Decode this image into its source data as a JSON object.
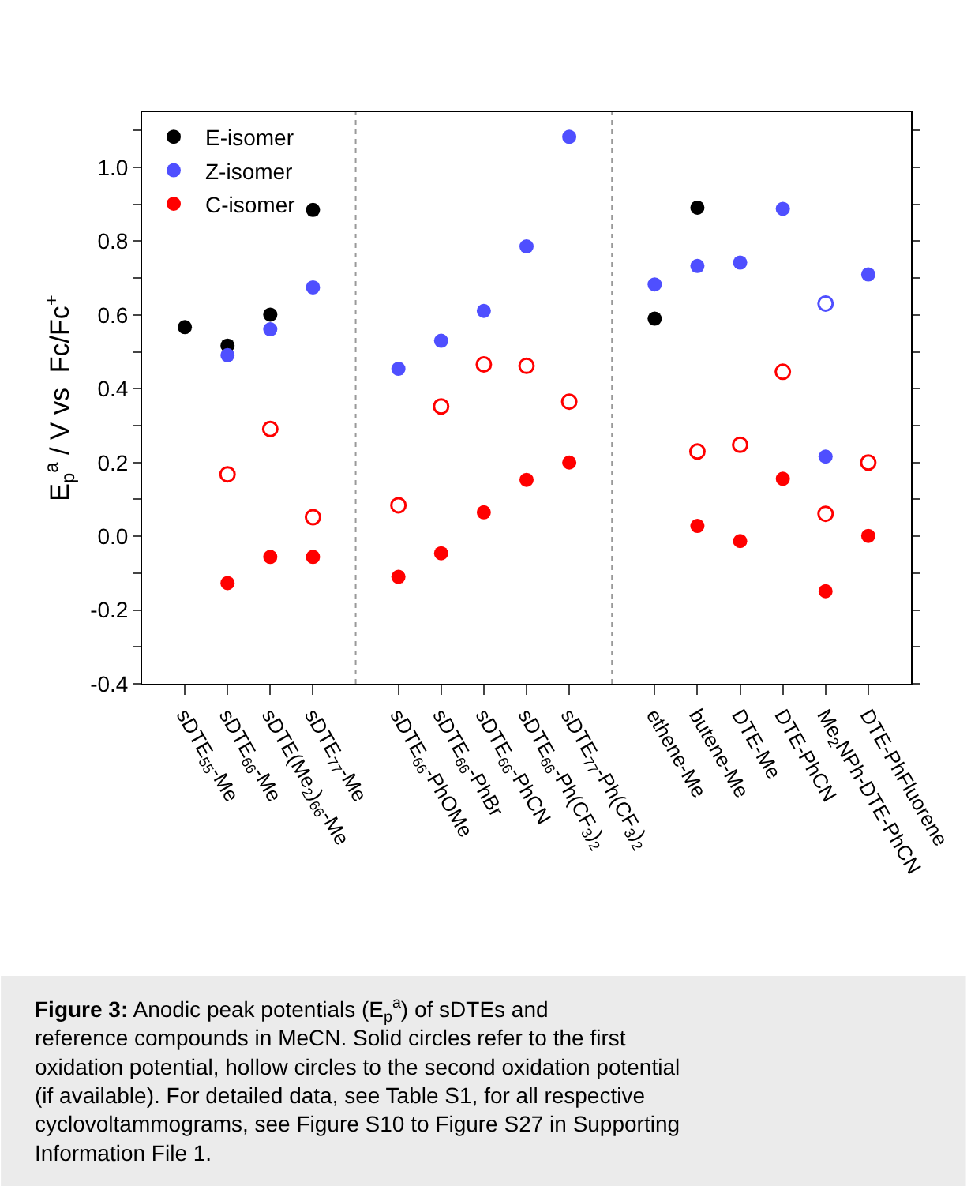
{
  "chart_data": {
    "type": "scatter",
    "categories": [
      "sDTE$_{55}$-Me",
      "sDTE$_{66}$-Me",
      "sDTE(Me$_{2}$)$_{66}$-Me",
      "sDTE$_{77}$-Me",
      null,
      "sDTE$_{66}$-PhOMe",
      "sDTE$_{66}$-PhBr",
      "sDTE$_{66}$-PhCN",
      "sDTE$_{66}$-Ph(CF$_{3}$)$_{2}$",
      "sDTE$_{77}$-Ph(CF$_{3}$)$_{2}$",
      null,
      "ethene-Me",
      "butene-Me",
      "DTE-Me",
      "DTE-PhCN",
      "Me$_{2}$NPh-DTE-PhCN",
      "DTE-PhFluorene"
    ],
    "ylabel": "E$_{p}$$^{a}$ / V vs  Fc/Fc$^{+}$",
    "ylim": [
      -0.4,
      1.15
    ],
    "yticks": [
      -0.4,
      {
        "value": -0.3,
        "label": null
      },
      -0.2,
      {
        "value": -0.1,
        "label": null
      },
      {
        "value": 0.0,
        "label": "0.0"
      },
      {
        "value": 0.1,
        "label": null
      },
      0.2,
      {
        "value": 0.3,
        "label": null
      },
      0.4,
      {
        "value": 0.5,
        "label": null
      },
      0.6,
      {
        "value": 0.7,
        "label": null
      },
      0.8,
      {
        "value": 0.9,
        "label": null
      },
      {
        "value": 1.0,
        "label": "1.0"
      },
      {
        "value": 1.1,
        "label": null
      }
    ],
    "marker": "circle",
    "legend": "top left",
    "series": [
      {
        "name": "E-isomer",
        "color": "#000000",
        "values": [
          0.567,
          0.517,
          0.601,
          0.885,
          null,
          null,
          null,
          null,
          null,
          null,
          null,
          0.59,
          0.891,
          null,
          null,
          null,
          null
        ]
      },
      {
        "name": "Z-isomer",
        "color": "#4f4fff",
        "values": [
          null,
          0.491,
          0.561,
          0.675,
          null,
          0.454,
          0.53,
          0.611,
          0.786,
          1.083,
          null,
          0.683,
          0.733,
          0.742,
          0.888,
          0.216,
          0.71
        ]
      },
      {
        "name": "C-isomer",
        "color": "#ff0000",
        "values": [
          null,
          -0.127,
          -0.056,
          -0.056,
          null,
          -0.11,
          -0.046,
          0.065,
          0.153,
          0.2,
          null,
          null,
          0.028,
          -0.013,
          0.156,
          -0.149,
          0.001
        ]
      },
      {
        "color": "#4f4fff",
        "marker": "circle-open",
        "values": [
          null,
          null,
          null,
          null,
          null,
          null,
          null,
          null,
          null,
          null,
          null,
          null,
          null,
          null,
          null,
          0.631,
          null
        ]
      },
      {
        "color": "#ff0000",
        "marker": "circle-open",
        "values": [
          null,
          0.168,
          0.291,
          0.052,
          null,
          0.084,
          0.352,
          0.466,
          0.462,
          0.365,
          null,
          null,
          0.23,
          0.248,
          0.446,
          0.061,
          0.2
        ]
      }
    ],
    "annotations": [
      "Figure 3: Anodic peak potentials (E$_{p}$$^{a}$) of sDTEs and reference compounds in MeCN. Solid circles refer to the first oxidation potential, hollow circles to the second oxidation potential (if available). For detailed data, see Table S1, for all respective cyclovoltammograms, see Figure S10 to Figure S27 in Supporting Information File 1."
    ]
  }
}
